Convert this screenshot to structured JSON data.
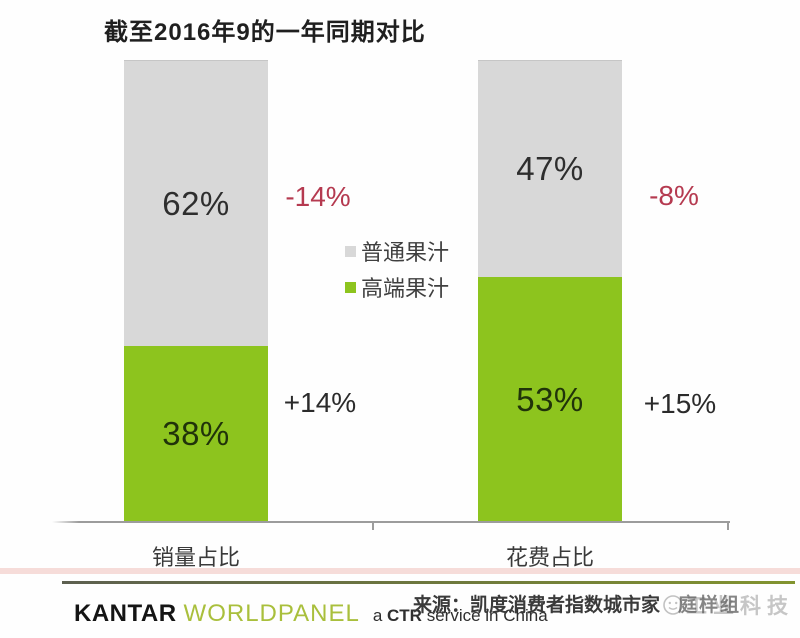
{
  "title": "截至2016年9的一年同期对比",
  "chart_data": {
    "type": "bar",
    "stacked": true,
    "unit": "%",
    "title": "截至2016年9的一年同期对比",
    "categories": [
      "销量占比",
      "花费占比"
    ],
    "series": [
      {
        "name": "普通果汁",
        "color": "#d8d8d8",
        "values": [
          62,
          47
        ],
        "changes": [
          "-14%",
          "-8%"
        ],
        "label_color": "#2e2e2e",
        "change_color": "#b53a50"
      },
      {
        "name": "高端果汁",
        "color": "#8dc41e",
        "values": [
          38,
          53
        ],
        "changes": [
          "+14%",
          "+15%"
        ],
        "label_color": "#20330a",
        "change_color": "#2b2b2b"
      }
    ],
    "xlabel": "",
    "ylabel": "",
    "ylim": [
      0,
      100
    ],
    "grid": false,
    "legend_position": "center-between-bars",
    "axis_line": "x-only"
  },
  "legend": {
    "items": [
      {
        "label": "普通果汁",
        "color": "#d8d8d8"
      },
      {
        "label": "高端果汁",
        "color": "#8dc41e"
      }
    ]
  },
  "footer": {
    "brand": {
      "kantar": "KANTAR",
      "worldpanel": "WORLDPANEL",
      "tagline_a": "a",
      "tagline_ctr": "CTR",
      "tagline_rest": "service in China"
    },
    "source_prefix": "来源：凯度消费者指数城市家",
    "source_obscured": "庭样组",
    "watermark": {
      "icon": "smiley-face",
      "text": "工业科技"
    }
  },
  "colors": {
    "premium_green": "#8dc41e",
    "normal_gray": "#d8d8d8",
    "negative_red": "#b53a50",
    "positive_black": "#2b2b2b",
    "axis_gray": "#9c9c9c",
    "worldpanel_green": "#a9bf3c"
  }
}
